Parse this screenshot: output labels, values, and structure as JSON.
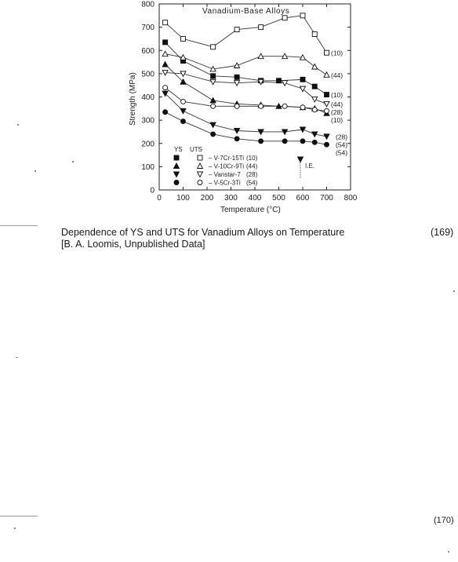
{
  "chart_data": {
    "type": "line",
    "title": "Vanadium-Base Alloys",
    "xlabel": "Temperature (°C)",
    "ylabel": "Strength (MPa)",
    "xlim": [
      0,
      800
    ],
    "ylim": [
      0,
      800
    ],
    "x_ticks": [
      "0",
      "100",
      "200",
      "300",
      "400",
      "500",
      "600",
      "700",
      "800"
    ],
    "y_ticks": [
      "0",
      "100",
      "200",
      "300",
      "400",
      "500",
      "600",
      "700",
      "800"
    ],
    "legend_headers": [
      "YS",
      "UTS"
    ],
    "legend": [
      {
        "label": "V-7Cr-15Ti",
        "ref": "(10)"
      },
      {
        "label": "V-10Cr-9Ti",
        "ref": "(44)"
      },
      {
        "label": "Vanstar-7",
        "ref": "(28)"
      },
      {
        "label": "V-5Cr-3Ti",
        "ref": "(54)"
      }
    ],
    "ie_label": "I.E.",
    "series": [
      {
        "name": "V-7Cr-15Ti YS",
        "marker": "square-filled",
        "end_label": "(10)",
        "points": [
          [
            25,
            635
          ],
          [
            100,
            555
          ],
          [
            225,
            490
          ],
          [
            325,
            485
          ],
          [
            425,
            470
          ],
          [
            500,
            470
          ],
          [
            600,
            475
          ],
          [
            650,
            445
          ],
          [
            700,
            410
          ]
        ]
      },
      {
        "name": "V-7Cr-15Ti UTS",
        "marker": "square-open",
        "end_label": "(10)",
        "points": [
          [
            25,
            720
          ],
          [
            100,
            650
          ],
          [
            225,
            615
          ],
          [
            325,
            690
          ],
          [
            425,
            700
          ],
          [
            525,
            740
          ],
          [
            600,
            750
          ],
          [
            650,
            670
          ],
          [
            700,
            590
          ]
        ]
      },
      {
        "name": "V-10Cr-9Ti YS",
        "marker": "triangle-up-filled",
        "end_label": "(10)",
        "points": [
          [
            25,
            540
          ],
          [
            100,
            465
          ],
          [
            225,
            385
          ],
          [
            325,
            370
          ],
          [
            425,
            365
          ],
          [
            500,
            360
          ],
          [
            600,
            355
          ],
          [
            650,
            350
          ],
          [
            700,
            330
          ]
        ]
      },
      {
        "name": "V-10Cr-9Ti UTS",
        "marker": "triangle-up-open",
        "end_label": "(44)",
        "points": [
          [
            25,
            585
          ],
          [
            100,
            570
          ],
          [
            225,
            520
          ],
          [
            325,
            535
          ],
          [
            425,
            575
          ],
          [
            525,
            575
          ],
          [
            600,
            570
          ],
          [
            650,
            530
          ],
          [
            700,
            495
          ]
        ]
      },
      {
        "name": "Vanstar-7 YS",
        "marker": "triangle-down-filled",
        "end_label": "(28)",
        "points": [
          [
            25,
            415
          ],
          [
            100,
            340
          ],
          [
            225,
            280
          ],
          [
            325,
            255
          ],
          [
            425,
            250
          ],
          [
            525,
            250
          ],
          [
            600,
            260
          ],
          [
            650,
            240
          ],
          [
            700,
            230
          ]
        ]
      },
      {
        "name": "Vanstar-7 UTS",
        "marker": "triangle-down-open",
        "end_label": "(44)",
        "points": [
          [
            25,
            505
          ],
          [
            100,
            500
          ],
          [
            225,
            465
          ],
          [
            325,
            460
          ],
          [
            425,
            465
          ],
          [
            525,
            460
          ],
          [
            600,
            435
          ],
          [
            650,
            390
          ],
          [
            700,
            370
          ]
        ]
      },
      {
        "name": "V-5Cr-3Ti YS",
        "marker": "circle-filled",
        "end_label": "(54)",
        "points": [
          [
            25,
            335
          ],
          [
            100,
            295
          ],
          [
            225,
            240
          ],
          [
            325,
            220
          ],
          [
            425,
            210
          ],
          [
            525,
            210
          ],
          [
            600,
            210
          ],
          [
            650,
            205
          ],
          [
            700,
            195
          ]
        ]
      },
      {
        "name": "V-5Cr-3Ti UTS",
        "marker": "circle-open",
        "end_label": "(28)",
        "points": [
          [
            25,
            440
          ],
          [
            100,
            380
          ],
          [
            225,
            360
          ],
          [
            325,
            360
          ],
          [
            425,
            360
          ],
          [
            525,
            360
          ],
          [
            600,
            355
          ],
          [
            650,
            345
          ],
          [
            700,
            340
          ]
        ]
      }
    ],
    "extra_end_label": "(54)"
  },
  "caption": {
    "line1": "Dependence of YS and UTS for Vanadium Alloys on Temperature",
    "line2": "[B. A. Loomis, Unpublished Data]",
    "figure_number": "(169)",
    "next_figure_number": "(170)"
  }
}
